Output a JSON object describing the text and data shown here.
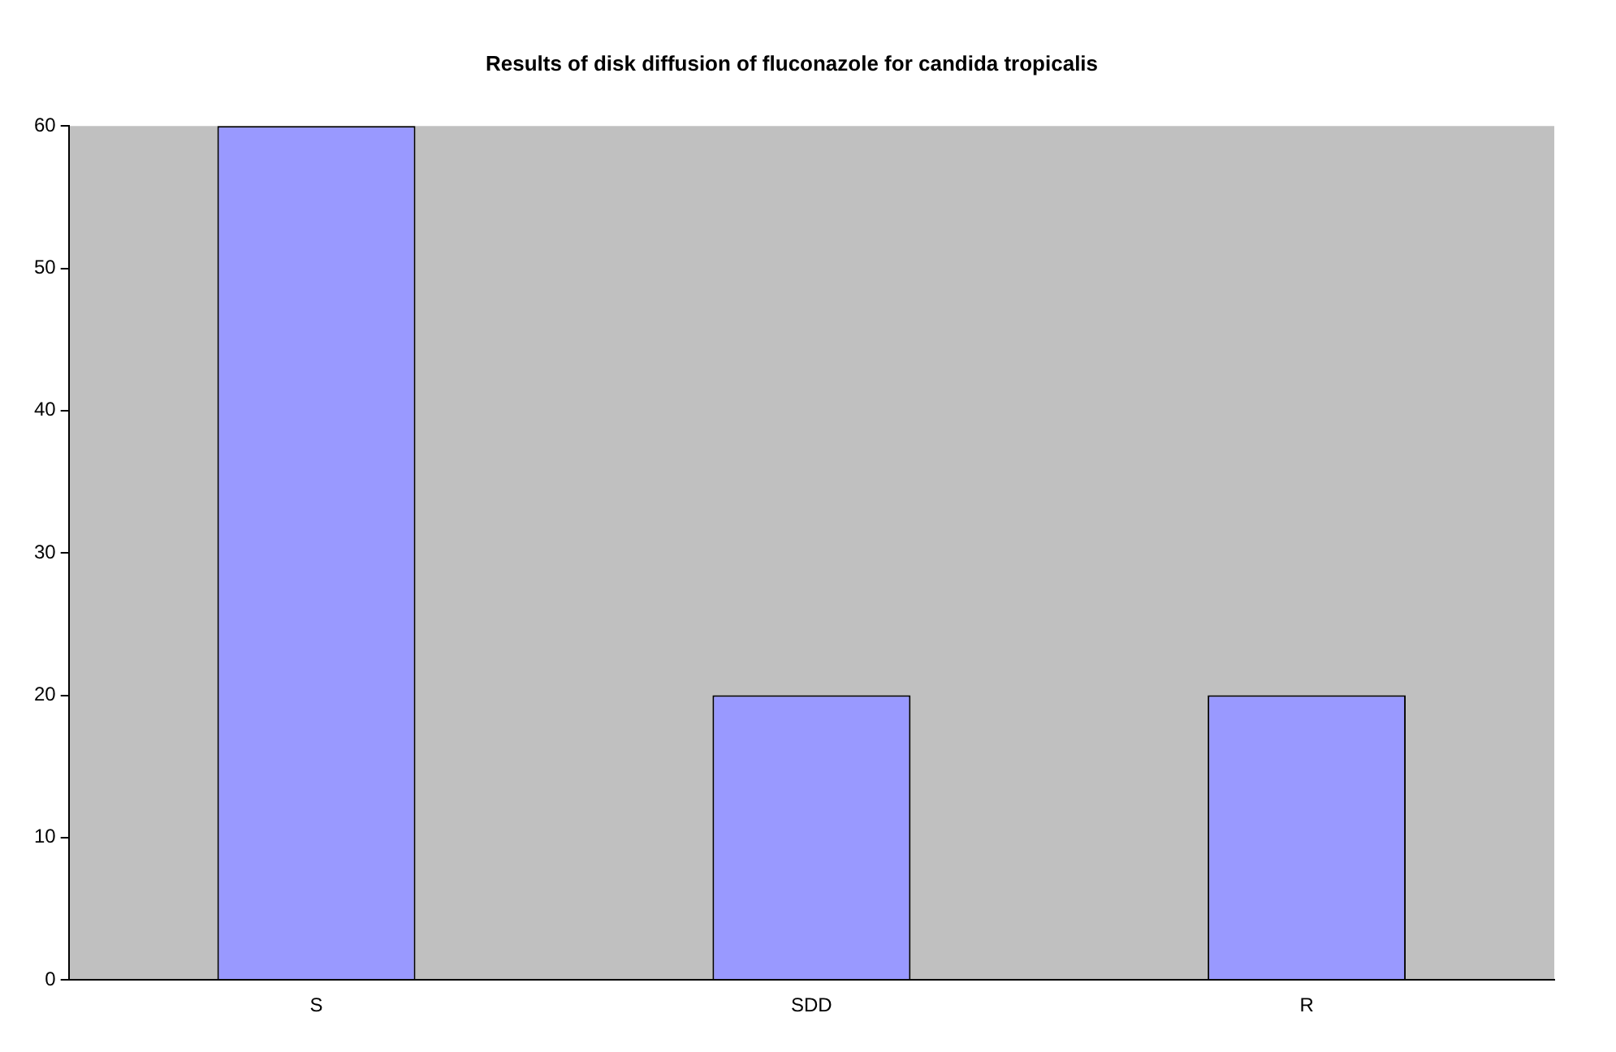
{
  "chart_data": {
    "type": "bar",
    "title": "Results of disk diffusion of fluconazole for candida tropicalis",
    "categories": [
      "S",
      "SDD",
      "R"
    ],
    "values": [
      60,
      20,
      20
    ],
    "color": "#9999ff",
    "ylim": [
      0,
      60
    ],
    "yticks": [
      0,
      10,
      20,
      30,
      40,
      50,
      60
    ],
    "grid": false
  }
}
